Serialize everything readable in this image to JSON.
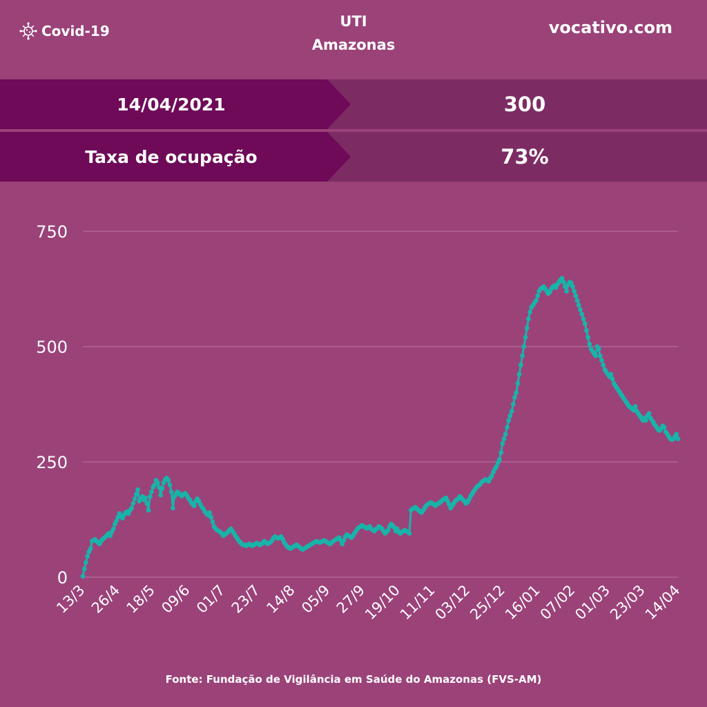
{
  "header": {
    "brand": "Covid-19",
    "title_line1": "UTI",
    "title_line2": "Amazonas",
    "site": "vocativo.com"
  },
  "stats": [
    {
      "label": "14/04/2021",
      "value": "300"
    },
    {
      "label": "Taxa de ocupação",
      "value": "73%"
    }
  ],
  "footer": {
    "source": "Fonte: Fundação de Vigilância em Saúde do Amazonas (FVS-AM)"
  },
  "colors": {
    "background": "#9b4279",
    "label_panel": "#6e0a58",
    "value_panel": "#7d2c63",
    "line": "#19b3a9",
    "grid": "#b878a3"
  },
  "chart_data": {
    "type": "line",
    "x_ticks": [
      "13/3",
      "26/4",
      "18/5",
      "09/6",
      "01/7",
      "23/7",
      "14/8",
      "05/9",
      "27/9",
      "19/10",
      "11/11",
      "03/12",
      "25/12",
      "16/01",
      "07/02",
      "01/03",
      "23/03",
      "14/04"
    ],
    "y_ticks": [
      0,
      250,
      500,
      750
    ],
    "ylim": [
      0,
      750
    ],
    "grid": true,
    "series": [
      {
        "values": [
          2,
          18,
          32,
          45,
          55,
          62,
          78,
          80,
          82,
          78,
          75,
          72,
          78,
          82,
          85,
          88,
          92,
          95,
          90,
          98,
          105,
          115,
          122,
          130,
          138,
          132,
          128,
          135,
          140,
          142,
          138,
          145,
          150,
          160,
          170,
          180,
          190,
          165,
          170,
          175,
          168,
          172,
          160,
          145,
          175,
          185,
          195,
          200,
          210,
          205,
          195,
          178,
          192,
          205,
          212,
          215,
          210,
          200,
          185,
          150,
          175,
          180,
          185,
          182,
          178,
          176,
          180,
          182,
          178,
          172,
          168,
          162,
          158,
          155,
          165,
          170,
          165,
          158,
          152,
          148,
          142,
          138,
          135,
          140,
          130,
          120,
          110,
          105,
          102,
          100,
          98,
          95,
          90,
          92,
          95,
          98,
          102,
          105,
          100,
          95,
          90,
          85,
          80,
          76,
          72,
          70,
          70,
          68,
          70,
          72,
          70,
          68,
          70,
          72,
          74,
          72,
          70,
          72,
          75,
          78,
          75,
          72,
          74,
          76,
          80,
          85,
          88,
          86,
          84,
          86,
          88,
          82,
          75,
          70,
          66,
          64,
          62,
          64,
          66,
          68,
          70,
          68,
          65,
          62,
          60,
          62,
          64,
          66,
          68,
          70,
          72,
          74,
          76,
          78,
          77,
          75,
          76,
          78,
          80,
          78,
          76,
          74,
          72,
          75,
          78,
          80,
          82,
          84,
          86,
          80,
          72,
          80,
          88,
          92,
          90,
          88,
          86,
          90,
          95,
          100,
          105,
          108,
          110,
          112,
          110,
          108,
          106,
          108,
          110,
          105,
          102,
          100,
          104,
          106,
          110,
          108,
          105,
          100,
          95,
          98,
          102,
          110,
          115,
          112,
          108,
          100,
          105,
          98,
          95,
          98,
          100,
          102,
          100,
          98,
          95,
          145,
          148,
          150,
          152,
          148,
          145,
          142,
          140,
          145,
          150,
          155,
          158,
          160,
          162,
          160,
          158,
          155,
          158,
          160,
          162,
          165,
          168,
          170,
          172,
          165,
          158,
          150,
          155,
          160,
          165,
          168,
          170,
          175,
          172,
          168,
          165,
          160,
          162,
          168,
          175,
          180,
          185,
          190,
          195,
          198,
          200,
          205,
          208,
          210,
          212,
          210,
          208,
          215,
          220,
          228,
          235,
          240,
          248,
          255,
          270,
          290,
          300,
          310,
          325,
          340,
          350,
          360,
          375,
          390,
          400,
          420,
          440,
          460,
          480,
          500,
          520,
          540,
          560,
          575,
          585,
          590,
          595,
          600,
          610,
          620,
          625,
          628,
          630,
          625,
          620,
          615,
          618,
          625,
          630,
          632,
          628,
          635,
          640,
          645,
          648,
          640,
          630,
          620,
          635,
          640,
          638,
          630,
          620,
          610,
          600,
          590,
          580,
          570,
          560,
          550,
          535,
          520,
          505,
          495,
          490,
          485,
          480,
          500,
          495,
          480,
          470,
          460,
          450,
          445,
          440,
          435,
          440,
          430,
          420,
          415,
          410,
          405,
          400,
          395,
          390,
          385,
          380,
          375,
          370,
          368,
          365,
          362,
          370,
          360,
          355,
          350,
          345,
          340,
          345,
          340,
          350,
          355,
          345,
          340,
          335,
          330,
          325,
          320,
          318,
          322,
          328,
          325,
          315,
          310,
          305,
          300,
          298,
          300,
          305,
          310,
          300
        ]
      }
    ]
  }
}
